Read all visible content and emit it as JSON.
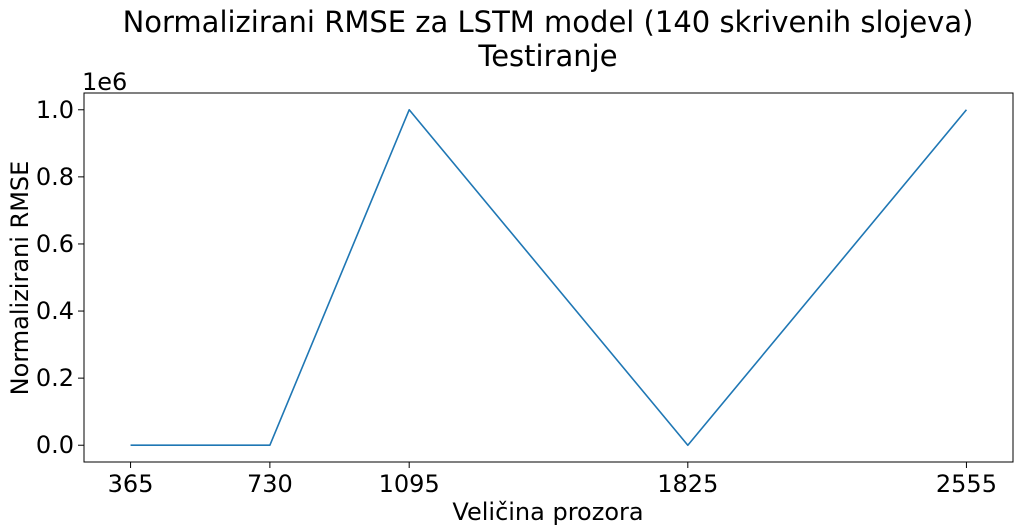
{
  "chart_data": {
    "type": "line",
    "title_line1": "Normalizirani RMSE za LSTM model (140 skrivenih slojeva)",
    "title_line2": "Testiranje",
    "xlabel": "Veličina prozora",
    "ylabel": "Normalizirani RMSE",
    "y_offset_label": "1e6",
    "x": [
      365,
      730,
      1095,
      1825,
      2555
    ],
    "x_tick_labels": [
      "365",
      "730",
      "1095",
      "1825",
      "2555"
    ],
    "y_ticks": [
      0.0,
      0.2,
      0.4,
      0.6,
      0.8,
      1.0
    ],
    "y_tick_labels": [
      "0.0",
      "0.2",
      "0.4",
      "0.6",
      "0.8",
      "1.0"
    ],
    "xlim": [
      243,
      2677
    ],
    "ylim": [
      -0.05,
      1.05
    ],
    "grid": false,
    "series": [
      {
        "values": [
          0.0,
          0.0,
          1.0,
          0.0,
          1.0
        ],
        "color": "#1f77b4"
      }
    ]
  }
}
